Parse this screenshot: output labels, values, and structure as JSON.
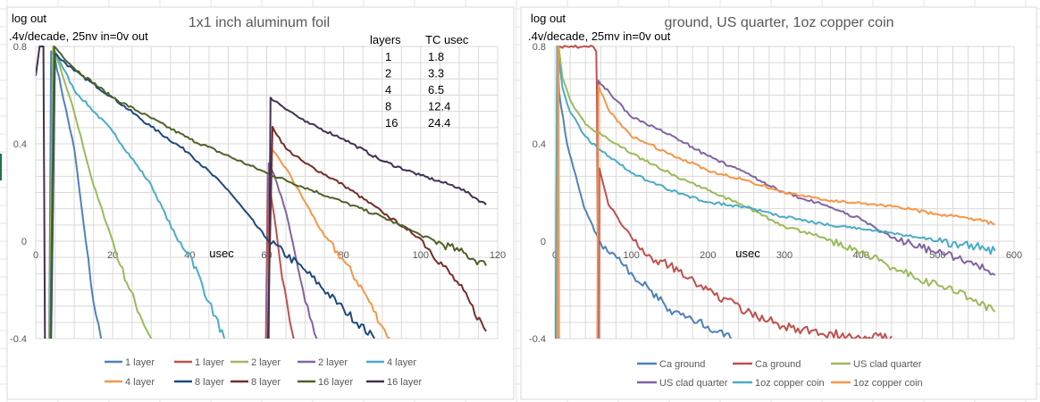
{
  "chart_data": [
    {
      "type": "line",
      "title": "1x1 inch aluminum foil",
      "ylabel_lines": [
        "log out",
        ".4v/decade, 25nv in=0v out"
      ],
      "xlabel": "usec",
      "xlim": [
        0,
        120
      ],
      "ylim": [
        -0.4,
        0.8
      ],
      "xticks": [
        "0",
        "20",
        "40",
        "60",
        "80",
        "100",
        "120"
      ],
      "yticks": [
        "0.8",
        "0.4",
        "0",
        "-0.4"
      ],
      "grid": true,
      "legend_position": "bottom",
      "annotation_table": {
        "headers": [
          "layers",
          "TC usec"
        ],
        "rows": [
          [
            "1",
            "1.8"
          ],
          [
            "2",
            "3.3"
          ],
          [
            "4",
            "6.5"
          ],
          [
            "8",
            "12.4"
          ],
          [
            "16",
            "24.4"
          ]
        ]
      },
      "series": [
        {
          "name": "1 layer",
          "color": "#4F81BD",
          "points": [
            [
              3.5,
              -0.4
            ],
            [
              4,
              0.78
            ],
            [
              5,
              0.75
            ],
            [
              10,
              0.38
            ],
            [
              13,
              0
            ],
            [
              15,
              -0.25
            ],
            [
              17,
              -0.4
            ]
          ]
        },
        {
          "name": "1 layer",
          "color": "#C0504D",
          "points": [
            [
              59.8,
              -0.4
            ],
            [
              60.3,
              0.27
            ],
            [
              62,
              0.1
            ],
            [
              64,
              -0.15
            ],
            [
              66,
              -0.33
            ],
            [
              67,
              -0.4
            ]
          ]
        },
        {
          "name": "2 layer",
          "color": "#9BBB59",
          "points": [
            [
              3.6,
              -0.4
            ],
            [
              4.5,
              0.8
            ],
            [
              10,
              0.53
            ],
            [
              15,
              0.23
            ],
            [
              20,
              0
            ],
            [
              22,
              -0.1
            ],
            [
              27,
              -0.3
            ],
            [
              30,
              -0.4
            ]
          ]
        },
        {
          "name": "2 layer",
          "color": "#8064A2",
          "points": [
            [
              60,
              -0.4
            ],
            [
              60.5,
              0.32
            ],
            [
              62,
              0.27
            ],
            [
              65,
              0.12
            ],
            [
              68,
              -0.1
            ],
            [
              70,
              -0.25
            ],
            [
              73,
              -0.4
            ]
          ]
        },
        {
          "name": "4 layer",
          "color": "#4BACC6",
          "points": [
            [
              4,
              -0.4
            ],
            [
              5,
              0.78
            ],
            [
              10,
              0.62
            ],
            [
              20,
              0.45
            ],
            [
              30,
              0.23
            ],
            [
              37,
              0
            ],
            [
              40,
              -0.05
            ],
            [
              45,
              -0.25
            ],
            [
              49,
              -0.4
            ]
          ]
        },
        {
          "name": "4 layer",
          "color": "#F79646",
          "points": [
            [
              60.2,
              -0.4
            ],
            [
              61,
              0.38
            ],
            [
              65,
              0.3
            ],
            [
              70,
              0.16
            ],
            [
              75,
              0.02
            ],
            [
              80,
              -0.08
            ],
            [
              85,
              -0.2
            ],
            [
              90,
              -0.35
            ],
            [
              92,
              -0.4
            ]
          ]
        },
        {
          "name": "8 layer",
          "color": "#1F497D",
          "points": [
            [
              4,
              -0.4
            ],
            [
              5,
              0.77
            ],
            [
              10,
              0.7
            ],
            [
              20,
              0.59
            ],
            [
              30,
              0.47
            ],
            [
              40,
              0.36
            ],
            [
              50,
              0.21
            ],
            [
              60,
              0.01
            ],
            [
              70,
              -0.12
            ],
            [
              80,
              -0.28
            ],
            [
              88,
              -0.4
            ]
          ]
        },
        {
          "name": "8 layer",
          "color": "#772C2A",
          "points": [
            [
              60.3,
              -0.4
            ],
            [
              61.5,
              0.47
            ],
            [
              65,
              0.38
            ],
            [
              70,
              0.32
            ],
            [
              80,
              0.23
            ],
            [
              90,
              0.12
            ],
            [
              100,
              0.01
            ],
            [
              110,
              -0.18
            ],
            [
              117,
              -0.37
            ]
          ]
        },
        {
          "name": "16 layer",
          "color": "#4F6228",
          "points": [
            [
              3.8,
              -0.4
            ],
            [
              4.8,
              0.8
            ],
            [
              10,
              0.71
            ],
            [
              20,
              0.59
            ],
            [
              40,
              0.42
            ],
            [
              60,
              0.28
            ],
            [
              80,
              0.16
            ],
            [
              90,
              0.1
            ],
            [
              100,
              0.025
            ],
            [
              110,
              -0.04
            ],
            [
              117,
              -0.1
            ]
          ]
        },
        {
          "name": "16 layer",
          "color": "#403151",
          "points": [
            [
              0,
              0.68
            ],
            [
              1,
              0.8
            ],
            [
              2,
              0.8
            ],
            [
              2.4,
              -0.4
            ],
            null,
            [
              60.5,
              -0.4
            ],
            [
              61,
              0.59
            ],
            [
              70,
              0.49
            ],
            [
              80,
              0.42
            ],
            [
              90,
              0.33
            ],
            [
              100,
              0.27
            ],
            [
              110,
              0.22
            ],
            [
              117,
              0.15
            ]
          ]
        }
      ]
    },
    {
      "type": "line",
      "title": "ground, US quarter, 1oz copper coin",
      "ylabel_lines": [
        "log out",
        ".4v/decade, 25mv in=0v out"
      ],
      "xlabel": "usec",
      "xlim": [
        0,
        600
      ],
      "ylim": [
        -0.4,
        0.8
      ],
      "xticks": [
        "0",
        "100",
        "200",
        "300",
        "400",
        "500",
        "600"
      ],
      "yticks": [
        "0.8",
        "0.4",
        "0",
        "-0.4"
      ],
      "grid": true,
      "legend_position": "bottom",
      "series": [
        {
          "name": "Ca ground",
          "color": "#4F81BD",
          "points": [
            [
              1,
              -0.4
            ],
            [
              3,
              0.8
            ],
            [
              5.6,
              0.61
            ],
            [
              16,
              0.4
            ],
            [
              38,
              0.14
            ],
            [
              60,
              -0.01
            ],
            [
              90,
              -0.1
            ],
            [
              100,
              -0.13
            ],
            [
              150,
              -0.28
            ],
            [
              200,
              -0.35
            ],
            [
              230,
              -0.4
            ]
          ]
        },
        {
          "name": "Ca ground",
          "color": "#C0504D",
          "points": [
            [
              2,
              -0.4
            ],
            [
              4,
              0.8
            ],
            [
              50,
              0.8
            ],
            [
              54,
              0.78
            ],
            [
              55,
              0.6
            ],
            [
              56.5,
              -0.4
            ],
            null,
            [
              57.5,
              -0.4
            ],
            [
              58,
              0.3
            ],
            [
              70,
              0.15
            ],
            [
              100,
              0.016
            ],
            [
              120,
              -0.06
            ],
            [
              150,
              -0.1
            ],
            [
              200,
              -0.2
            ],
            [
              250,
              -0.29
            ],
            [
              300,
              -0.35
            ],
            [
              350,
              -0.38
            ],
            [
              440,
              -0.39
            ]
          ]
        },
        {
          "name": "US clad quarter",
          "color": "#9BBB59",
          "points": [
            [
              3,
              -0.4
            ],
            [
              5,
              0.8
            ],
            [
              10,
              0.67
            ],
            [
              20,
              0.58
            ],
            [
              40,
              0.48
            ],
            [
              60,
              0.44
            ],
            [
              80,
              0.4
            ],
            [
              100,
              0.36
            ],
            [
              150,
              0.28
            ],
            [
              200,
              0.21
            ],
            [
              250,
              0.14
            ],
            [
              300,
              0.06
            ],
            [
              350,
              0.016
            ],
            [
              400,
              -0.045
            ],
            [
              450,
              -0.12
            ],
            [
              500,
              -0.18
            ],
            [
              550,
              -0.24
            ],
            [
              575,
              -0.29
            ]
          ]
        },
        {
          "name": "US clad quarter",
          "color": "#8064A2",
          "points": [
            [
              56,
              -0.4
            ],
            [
              57,
              0.66
            ],
            [
              80,
              0.58
            ],
            [
              100,
              0.51
            ],
            [
              150,
              0.44
            ],
            [
              200,
              0.35
            ],
            [
              250,
              0.28
            ],
            [
              300,
              0.2
            ],
            [
              350,
              0.15
            ],
            [
              400,
              0.09
            ],
            [
              450,
              0
            ],
            [
              500,
              -0.045
            ],
            [
              550,
              -0.09
            ],
            [
              575,
              -0.14
            ]
          ]
        },
        {
          "name": "1oz copper coin",
          "color": "#4BACC6",
          "points": [
            [
              1.5,
              -0.4
            ],
            [
              3,
              0.8
            ],
            [
              10,
              0.63
            ],
            [
              20,
              0.53
            ],
            [
              40,
              0.43
            ],
            [
              57,
              0.38
            ],
            [
              80,
              0.33
            ],
            [
              100,
              0.28
            ],
            [
              150,
              0.21
            ],
            [
              200,
              0.16
            ],
            [
              250,
              0.14
            ],
            [
              300,
              0.1
            ],
            [
              350,
              0.07
            ],
            [
              400,
              0.05
            ],
            [
              450,
              0.03
            ],
            [
              500,
              0
            ],
            [
              550,
              -0.02
            ],
            [
              575,
              -0.04
            ]
          ]
        },
        {
          "name": "1oz copper coin",
          "color": "#F79646",
          "points": [
            [
              3.5,
              -0.4
            ],
            [
              4.5,
              0.8
            ],
            [
              5.5,
              -0.4
            ],
            null,
            [
              55.5,
              -0.4
            ],
            [
              57,
              0.64
            ],
            [
              70,
              0.54
            ],
            [
              100,
              0.43
            ],
            [
              150,
              0.36
            ],
            [
              200,
              0.29
            ],
            [
              250,
              0.25
            ],
            [
              300,
              0.2
            ],
            [
              350,
              0.17
            ],
            [
              400,
              0.155
            ],
            [
              450,
              0.14
            ],
            [
              500,
              0.11
            ],
            [
              550,
              0.09
            ],
            [
              575,
              0.07
            ]
          ]
        }
      ]
    }
  ]
}
